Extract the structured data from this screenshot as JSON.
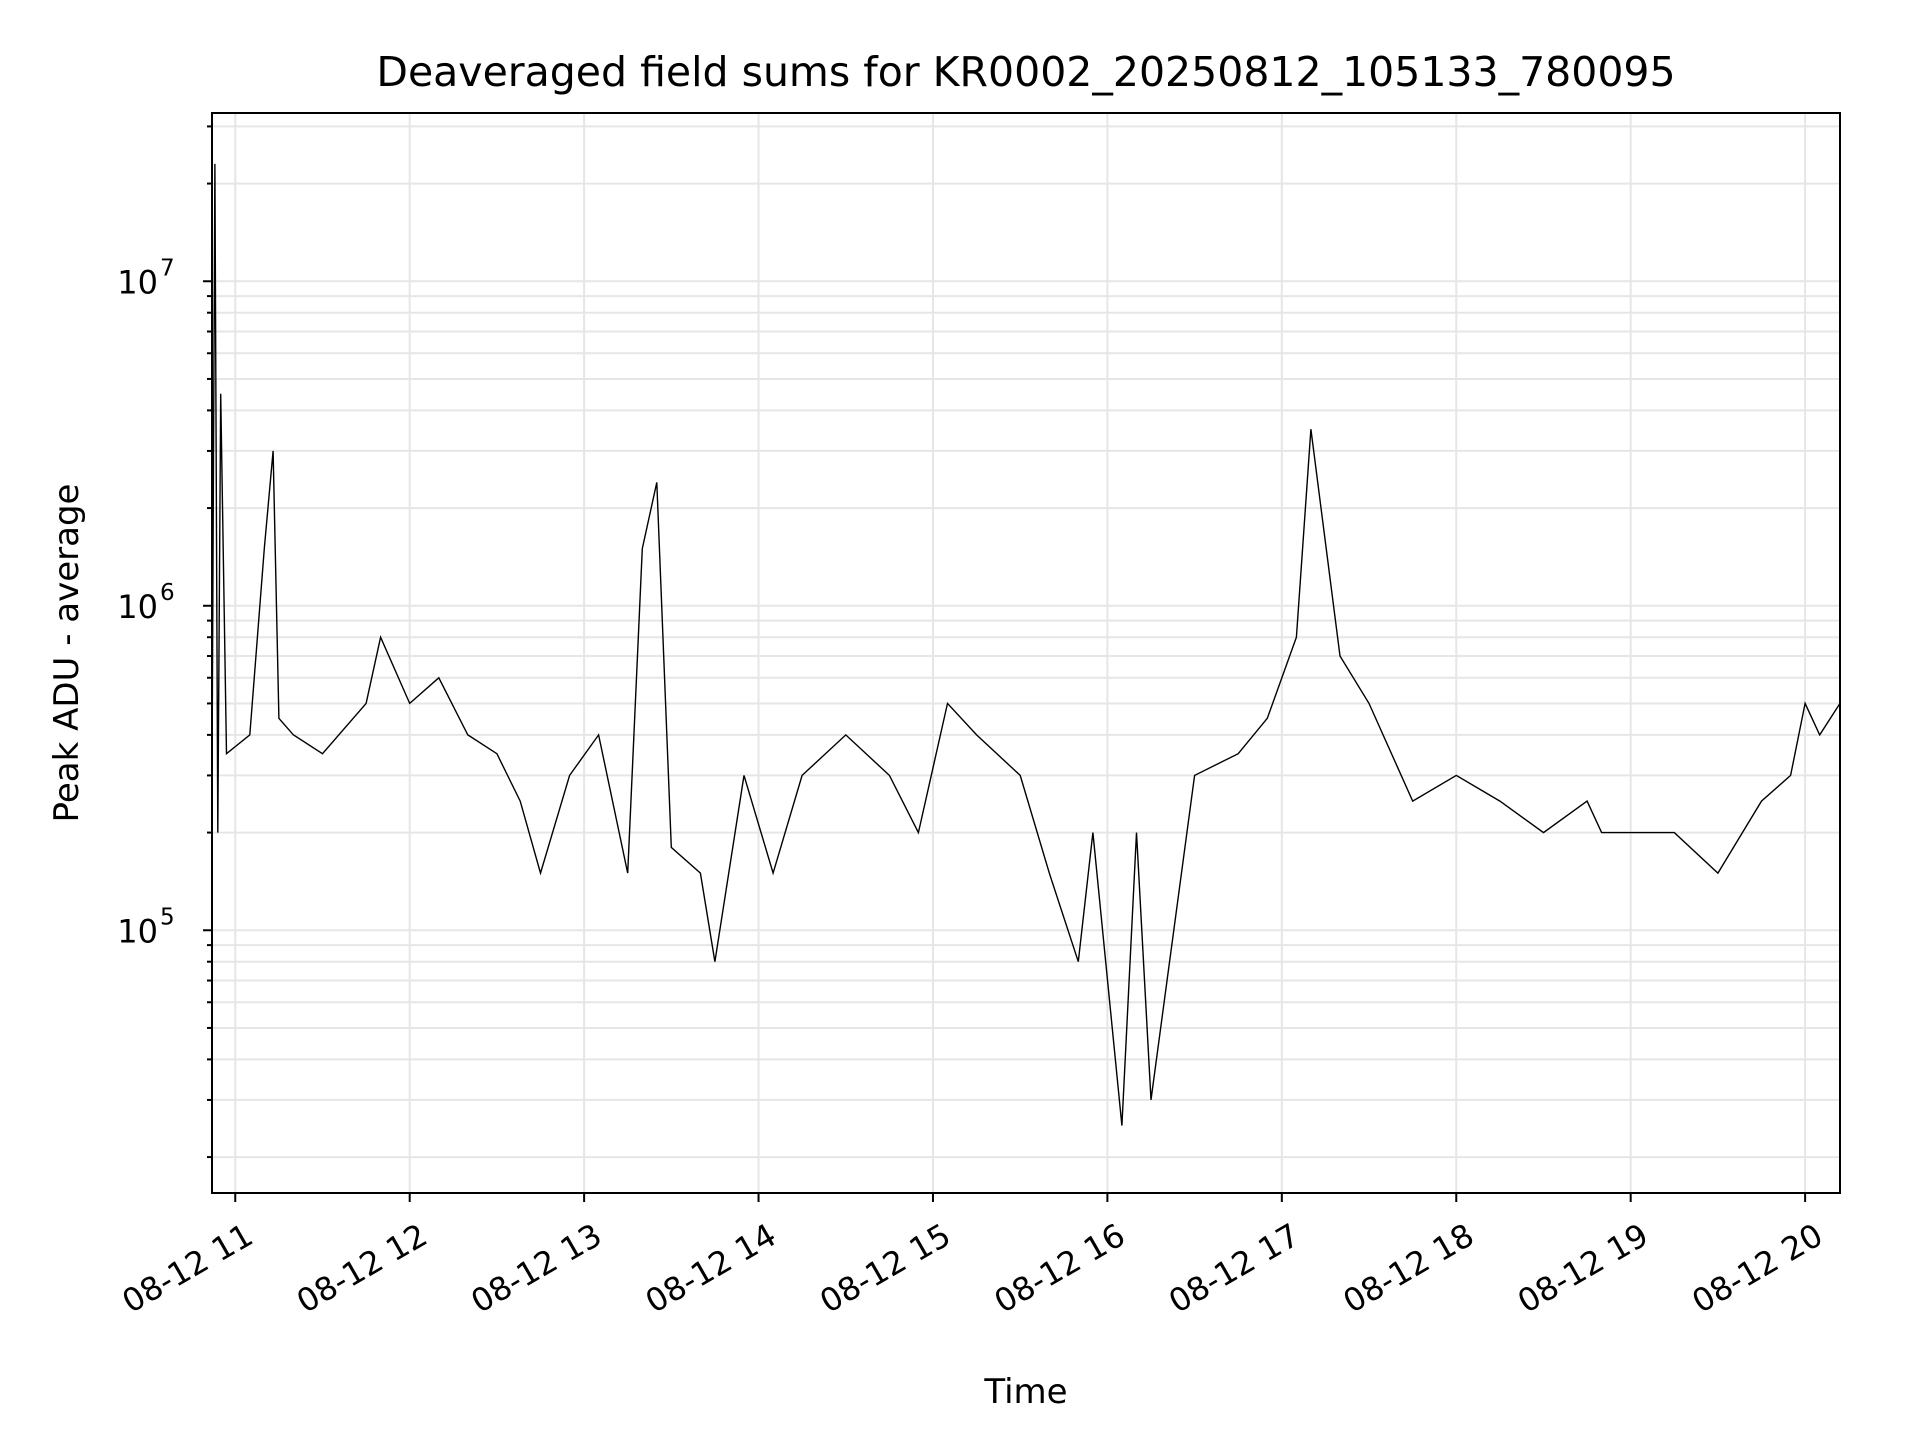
{
  "chart_data": {
    "type": "line",
    "title": "Deaveraged field sums for KR0002_20250812_105133_780095",
    "xlabel": "Time",
    "ylabel": "Peak ADU - average",
    "yscale": "log",
    "ylim": [
      15500,
      33000000
    ],
    "xlim": [
      "2025-08-12 10:52",
      "2025-08-12 20:12"
    ],
    "xticks": [
      {
        "value": "2025-08-12 11:00",
        "label": "08-12 11"
      },
      {
        "value": "2025-08-12 12:00",
        "label": "08-12 12"
      },
      {
        "value": "2025-08-12 13:00",
        "label": "08-12 13"
      },
      {
        "value": "2025-08-12 14:00",
        "label": "08-12 14"
      },
      {
        "value": "2025-08-12 15:00",
        "label": "08-12 15"
      },
      {
        "value": "2025-08-12 16:00",
        "label": "08-12 16"
      },
      {
        "value": "2025-08-12 17:00",
        "label": "08-12 17"
      },
      {
        "value": "2025-08-12 18:00",
        "label": "08-12 18"
      },
      {
        "value": "2025-08-12 19:00",
        "label": "08-12 19"
      },
      {
        "value": "2025-08-12 20:00",
        "label": "08-12 20"
      }
    ],
    "yticks": [
      {
        "value": 100000,
        "base": "10",
        "exp": "5"
      },
      {
        "value": 1000000,
        "base": "10",
        "exp": "6"
      },
      {
        "value": 10000000,
        "base": "10",
        "exp": "7"
      }
    ],
    "grid": true,
    "line_color": "#000000",
    "grid_color": "#e6e6e6",
    "series": [
      {
        "x": [
          "2025-08-12 10:52",
          "2025-08-12 10:53",
          "2025-08-12 10:54",
          "2025-08-12 10:55",
          "2025-08-12 10:57",
          "2025-08-12 11:05",
          "2025-08-12 11:10",
          "2025-08-12 11:13",
          "2025-08-12 11:15",
          "2025-08-12 11:20",
          "2025-08-12 11:30",
          "2025-08-12 11:45",
          "2025-08-12 11:50",
          "2025-08-12 12:00",
          "2025-08-12 12:10",
          "2025-08-12 12:20",
          "2025-08-12 12:30",
          "2025-08-12 12:38",
          "2025-08-12 12:45",
          "2025-08-12 12:55",
          "2025-08-12 13:05",
          "2025-08-12 13:15",
          "2025-08-12 13:20",
          "2025-08-12 13:25",
          "2025-08-12 13:30",
          "2025-08-12 13:40",
          "2025-08-12 13:45",
          "2025-08-12 13:55",
          "2025-08-12 14:05",
          "2025-08-12 14:15",
          "2025-08-12 14:30",
          "2025-08-12 14:45",
          "2025-08-12 14:55",
          "2025-08-12 15:05",
          "2025-08-12 15:15",
          "2025-08-12 15:30",
          "2025-08-12 15:40",
          "2025-08-12 15:50",
          "2025-08-12 15:55",
          "2025-08-12 16:05",
          "2025-08-12 16:10",
          "2025-08-12 16:15",
          "2025-08-12 16:30",
          "2025-08-12 16:45",
          "2025-08-12 16:55",
          "2025-08-12 17:05",
          "2025-08-12 17:10",
          "2025-08-12 17:20",
          "2025-08-12 17:30",
          "2025-08-12 17:45",
          "2025-08-12 18:00",
          "2025-08-12 18:15",
          "2025-08-12 18:30",
          "2025-08-12 18:45",
          "2025-08-12 18:50",
          "2025-08-12 19:00",
          "2025-08-12 19:15",
          "2025-08-12 19:30",
          "2025-08-12 19:45",
          "2025-08-12 19:55",
          "2025-08-12 20:00",
          "2025-08-12 20:05",
          "2025-08-12 20:12"
        ],
        "y": [
          300000,
          23000000,
          200000,
          4500000,
          350000,
          400000,
          1500000,
          3000000,
          450000,
          400000,
          350000,
          500000,
          800000,
          500000,
          600000,
          400000,
          350000,
          250000,
          150000,
          300000,
          400000,
          150000,
          1500000,
          2400000,
          180000,
          150000,
          80000,
          300000,
          150000,
          300000,
          400000,
          300000,
          200000,
          500000,
          400000,
          300000,
          150000,
          80000,
          200000,
          25000,
          200000,
          30000,
          300000,
          350000,
          450000,
          800000,
          3500000,
          700000,
          500000,
          250000,
          300000,
          250000,
          200000,
          250000,
          200000,
          200000,
          200000,
          150000,
          250000,
          300000,
          500000,
          400000,
          500000
        ]
      }
    ]
  }
}
